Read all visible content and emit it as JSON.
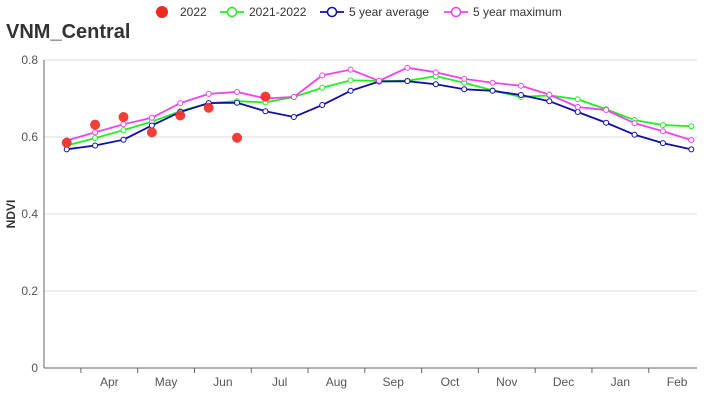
{
  "chart_data": {
    "type": "line",
    "title": "VNM_Central",
    "xlabel": "",
    "ylabel": "NDVI",
    "ylim": [
      0,
      0.8
    ],
    "yticks": [
      0,
      0.2,
      0.4,
      0.6,
      0.8
    ],
    "month_labels": [
      "Apr",
      "May",
      "Jun",
      "Jul",
      "Aug",
      "Sep",
      "Oct",
      "Nov",
      "Dec",
      "Jan",
      "Feb"
    ],
    "x_dekads": [
      1,
      2,
      3,
      4,
      5,
      6,
      7,
      8,
      9,
      10,
      11,
      12,
      13,
      14,
      15,
      16,
      17,
      18,
      19,
      20,
      21,
      22,
      23
    ],
    "grid": "horizontal",
    "legend_position": "top",
    "series": [
      {
        "name": "2022",
        "style": "points",
        "color": "#ee2a24",
        "x": [
          1,
          2,
          3,
          4,
          5,
          6,
          7,
          8
        ],
        "values": [
          0.585,
          0.632,
          0.652,
          0.612,
          0.656,
          0.676,
          0.598,
          0.705
        ]
      },
      {
        "name": "2021-2022",
        "style": "line",
        "color": "#22ee22",
        "values": [
          0.578,
          0.597,
          0.618,
          0.64,
          0.667,
          0.688,
          0.693,
          0.69,
          0.704,
          0.728,
          0.747,
          0.746,
          0.746,
          0.758,
          0.741,
          0.721,
          0.704,
          0.708,
          0.698,
          0.672,
          0.644,
          0.631,
          0.628
        ]
      },
      {
        "name": "5 year average",
        "style": "line",
        "color": "#0f0fa0",
        "values": [
          0.568,
          0.578,
          0.593,
          0.63,
          0.665,
          0.688,
          0.689,
          0.667,
          0.652,
          0.683,
          0.72,
          0.744,
          0.745,
          0.737,
          0.724,
          0.72,
          0.709,
          0.693,
          0.665,
          0.637,
          0.606,
          0.584,
          0.568
        ]
      },
      {
        "name": "5 year maximum",
        "style": "line",
        "color": "#ee44ee",
        "values": [
          0.591,
          0.612,
          0.633,
          0.65,
          0.688,
          0.712,
          0.717,
          0.7,
          0.704,
          0.76,
          0.775,
          0.746,
          0.78,
          0.768,
          0.751,
          0.741,
          0.733,
          0.71,
          0.678,
          0.67,
          0.636,
          0.615,
          0.592
        ]
      }
    ]
  }
}
